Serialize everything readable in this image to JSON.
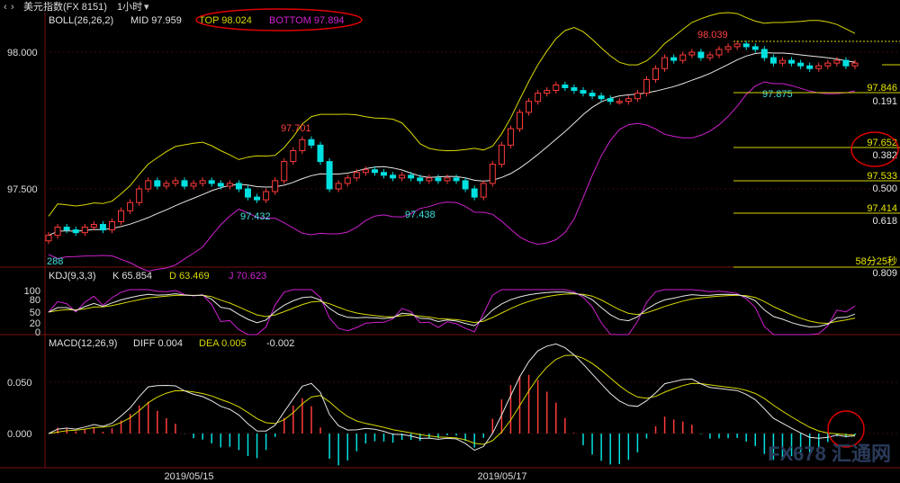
{
  "window": {
    "back_icon": "chevron-left-icon",
    "fwd_icon": "chevron-right-icon",
    "title": "美元指数(FX 8151)",
    "period": "1小时",
    "period_icon": "chevron-down-icon"
  },
  "boll": {
    "label": "BOLL(26,26,2)",
    "mid": "MID 97.959",
    "top": "TOP 98.024",
    "bottom": "BOTTOM 97.894"
  },
  "kdj": {
    "label": "KDJ(9,3,3)",
    "k": "K 65.854",
    "d": "D 63.469",
    "j": "J 70.623"
  },
  "macd": {
    "label": "MACD(12,26,9)",
    "diff": "DIFF 0.004",
    "dea": "DEA 0.005",
    "hist": "-0.002"
  },
  "price_axis": [
    "98.000",
    "97.500"
  ],
  "kdj_axis": [
    "100",
    "80",
    "50",
    "20",
    "0"
  ],
  "macd_axis": [
    "0.050",
    "0.000"
  ],
  "date_labels": [
    "2019/05/15",
    "2019/05/17"
  ],
  "annotations": {
    "high1": "97.701",
    "low1": "97.432",
    "low2": "97.438",
    "high2": "98.039",
    "low3": "97.875",
    "start": "288"
  },
  "fib_levels": [
    {
      "price": "97.846",
      "ratio": "0.191"
    },
    {
      "price": "97.652",
      "ratio": "0.382"
    },
    {
      "price": "97.533",
      "ratio": "0.500"
    },
    {
      "price": "97.414",
      "ratio": "0.618"
    },
    {
      "price": "58分25秒",
      "ratio": "0.809"
    }
  ],
  "watermark": "FX678 汇通网",
  "colors": {
    "up": "#ff3b3b",
    "down": "#00e0e0",
    "boll_mid": "#e8e8e8",
    "boll_top": "#d8d800",
    "boll_bottom": "#d020d0",
    "fib": "#d8d800",
    "highlight_circle": "#e00000"
  },
  "chart_data": [
    {
      "type": "candlestick",
      "title": "美元指数(FX 8151) 1小时",
      "ylim": [
        97.3,
        98.1
      ],
      "indicators": [
        "BOLL(26,26,2)"
      ],
      "highs_labeled": [
        97.701,
        98.039
      ],
      "lows_labeled": [
        97.432,
        97.438,
        97.875
      ],
      "close": [
        97.33,
        97.36,
        97.35,
        97.34,
        97.36,
        97.37,
        97.35,
        97.38,
        97.42,
        97.45,
        97.5,
        97.53,
        97.51,
        97.52,
        97.53,
        97.51,
        97.52,
        97.53,
        97.52,
        97.51,
        97.52,
        97.5,
        97.47,
        97.46,
        97.49,
        97.53,
        97.6,
        97.64,
        97.68,
        97.66,
        97.6,
        97.5,
        97.52,
        97.54,
        97.56,
        97.57,
        97.56,
        97.55,
        97.54,
        97.55,
        97.54,
        97.53,
        97.54,
        97.53,
        97.54,
        97.53,
        97.5,
        97.47,
        97.52,
        97.59,
        97.66,
        97.72,
        97.78,
        97.82,
        97.85,
        97.86,
        97.88,
        97.87,
        97.86,
        97.85,
        97.84,
        97.83,
        97.82,
        97.82,
        97.83,
        97.85,
        97.9,
        97.94,
        97.98,
        97.97,
        97.99,
        98.0,
        97.98,
        97.99,
        98.01,
        98.02,
        98.03,
        98.02,
        98.01,
        97.98,
        97.96,
        97.97,
        97.96,
        97.95,
        97.94,
        97.95,
        97.96,
        97.97,
        97.95,
        97.96
      ],
      "boll_top_endpoint": 98.024,
      "boll_mid_endpoint": 97.959,
      "boll_bottom_endpoint": 97.894
    },
    {
      "type": "line",
      "title": "KDJ(9,3,3)",
      "ylim": [
        0,
        100
      ],
      "series": [
        {
          "name": "K",
          "last": 65.854
        },
        {
          "name": "D",
          "last": 63.469
        },
        {
          "name": "J",
          "last": 70.623
        }
      ]
    },
    {
      "type": "bar",
      "title": "MACD(12,26,9)",
      "series": [
        {
          "name": "DIFF",
          "last": 0.004
        },
        {
          "name": "DEA",
          "last": 0.005
        }
      ],
      "histogram_last": -0.002,
      "ylim": [
        -0.03,
        0.1
      ]
    }
  ]
}
